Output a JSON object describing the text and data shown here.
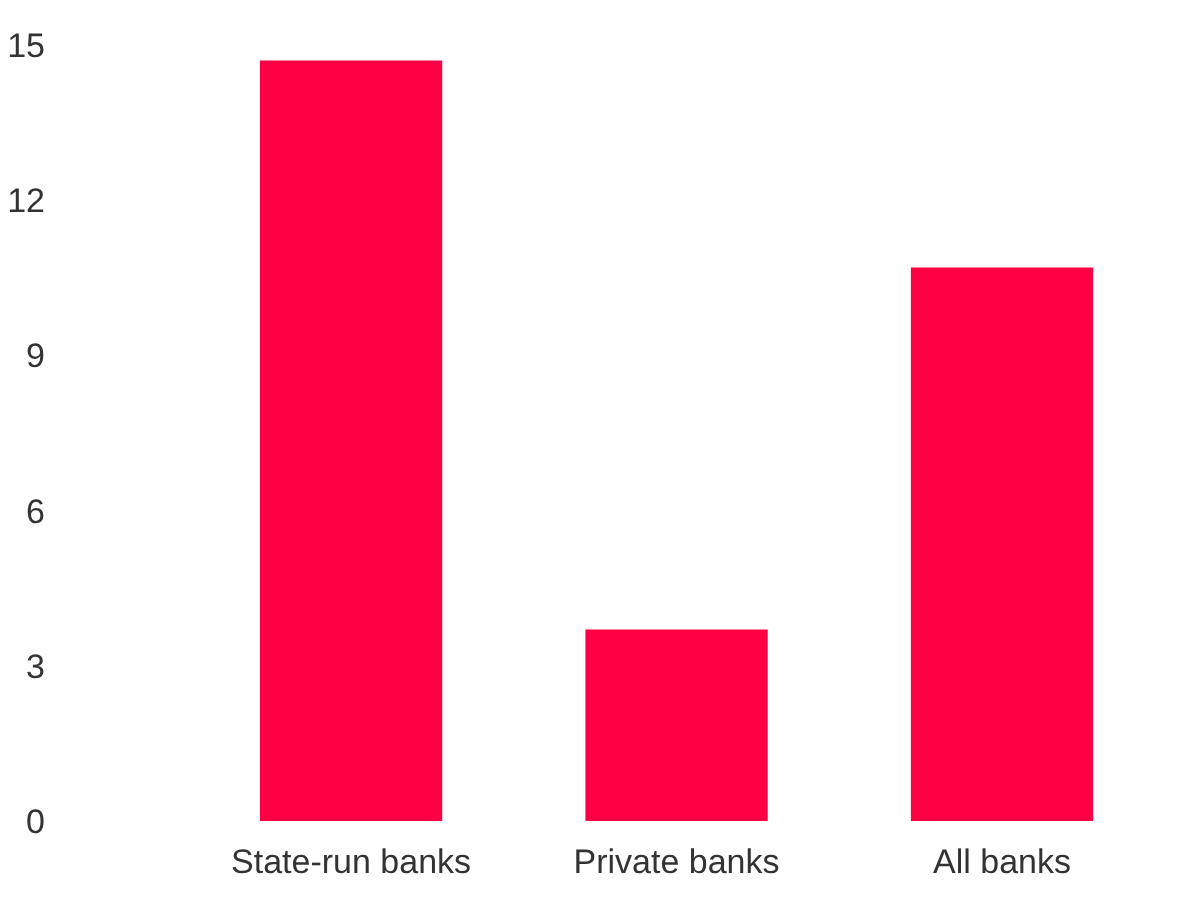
{
  "chart_data": {
    "type": "bar",
    "categories": [
      "State-run banks",
      "Private banks",
      "All banks"
    ],
    "values": [
      14.7,
      3.7,
      10.7
    ],
    "color": "#ff0044",
    "ylim": [
      0,
      15
    ],
    "yticks": [
      0,
      3,
      6,
      9,
      12,
      15
    ],
    "grid": false
  }
}
